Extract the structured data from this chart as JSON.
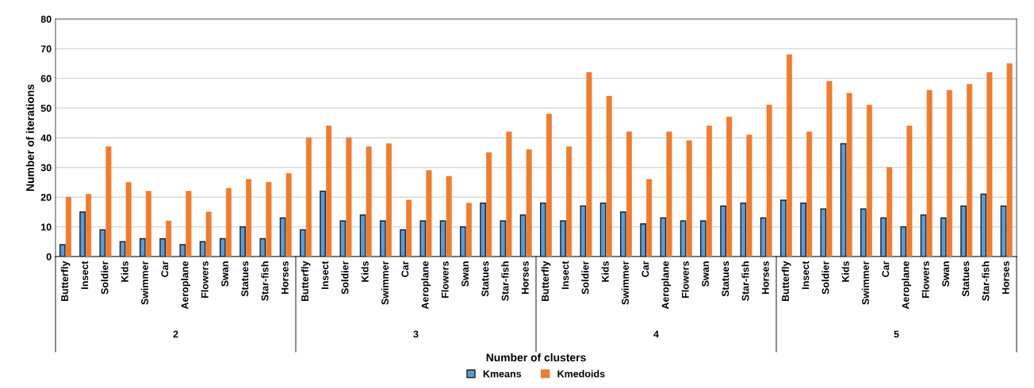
{
  "chart_data": {
    "type": "bar",
    "xlabel": "Number of clusters",
    "ylabel": "Number of iterations",
    "categories": [
      "Butterfly",
      "Insect",
      "Soldier",
      "Kids",
      "Swimmer",
      "Car",
      "Aeroplane",
      "Flowers",
      "Swan",
      "Statues",
      "Star-fish",
      "Horses",
      "Butterfly",
      "Insect",
      "Soldier",
      "Kids",
      "Swimmer",
      "Car",
      "Aeroplane",
      "Flowers",
      "Swan",
      "Statues",
      "Star-fish",
      "Horses",
      "Butterfly",
      "Insect",
      "Soldier",
      "Kids",
      "Swimmer",
      "Car",
      "Aeroplane",
      "Flowers",
      "Swan",
      "Statues",
      "Star-fish",
      "Horses",
      "Butterfly",
      "Insect",
      "Soldier",
      "Kids",
      "Swimmer",
      "Car",
      "Aeroplane",
      "Flowers",
      "Swan",
      "Statues",
      "Star-fish",
      "Horses"
    ],
    "series": [
      {
        "name": "Kmeans",
        "color": "#5b9bd5",
        "values": [
          4,
          15,
          9,
          5,
          6,
          6,
          4,
          5,
          6,
          10,
          6,
          13,
          9,
          22,
          12,
          14,
          12,
          9,
          12,
          12,
          10,
          18,
          12,
          14,
          18,
          12,
          17,
          18,
          15,
          11,
          13,
          12,
          12,
          17,
          18,
          13,
          19,
          18,
          16,
          38,
          16,
          13,
          10,
          14,
          13,
          17,
          21,
          17
        ]
      },
      {
        "name": "Kmedoids",
        "color": "#ed7d31",
        "values": [
          20,
          21,
          37,
          25,
          22,
          12,
          22,
          15,
          23,
          26,
          25,
          28,
          40,
          44,
          40,
          37,
          38,
          19,
          29,
          27,
          18,
          35,
          42,
          36,
          48,
          37,
          62,
          54,
          42,
          26,
          42,
          39,
          44,
          47,
          41,
          51,
          68,
          42,
          59,
          55,
          51,
          30,
          44,
          56,
          56,
          58,
          62,
          65
        ]
      }
    ],
    "annotations": [
      "2",
      "3",
      "4",
      "5"
    ],
    "ylim": [
      0,
      80
    ],
    "yticks": [
      0,
      10,
      20,
      30,
      40,
      50,
      60,
      70,
      80
    ],
    "grid": "y",
    "legend": "bottom"
  }
}
